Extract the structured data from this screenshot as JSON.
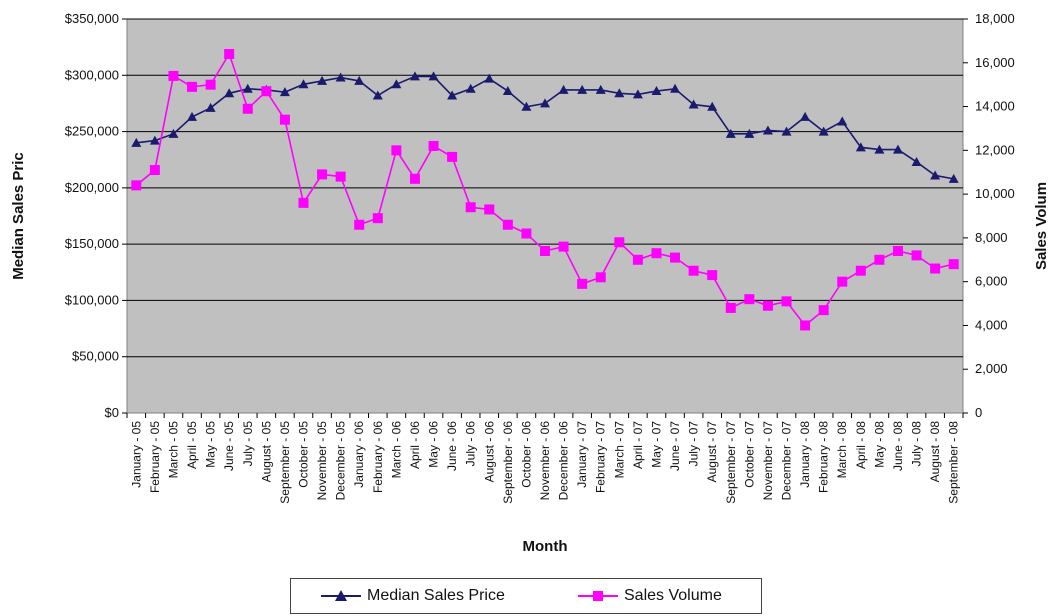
{
  "chart_data": {
    "type": "line",
    "title": "",
    "xlabel": "Month",
    "ylabel_left": "Median Sales Pric",
    "ylabel_right": "Sales Volum",
    "ylim_left": [
      0,
      350000
    ],
    "ylim_right": [
      0,
      18000
    ],
    "yticks_left": [
      "$0",
      "$50,000",
      "$100,000",
      "$150,000",
      "$200,000",
      "$250,000",
      "$300,000",
      "$350,000"
    ],
    "yticks_right": [
      "0",
      "2,000",
      "4,000",
      "6,000",
      "8,000",
      "10,000",
      "12,000",
      "14,000",
      "16,000",
      "18,000"
    ],
    "grid": true,
    "plot_background": "#c0c0c0",
    "legend_position": "bottom",
    "categories": [
      "January - 05",
      "February - 05",
      "March - 05",
      "April - 05",
      "May - 05",
      "June - 05",
      "July - 05",
      "August - 05",
      "September - 05",
      "October - 05",
      "November - 05",
      "December - 05",
      "January - 06",
      "February - 06",
      "March - 06",
      "April - 06",
      "May - 06",
      "June - 06",
      "July - 06",
      "August - 06",
      "September - 06",
      "October - 06",
      "November - 06",
      "December - 06",
      "January - 07",
      "February - 07",
      "March - 07",
      "April - 07",
      "May - 07",
      "June - 07",
      "July - 07",
      "August - 07",
      "September - 07",
      "October - 07",
      "November - 07",
      "December - 07",
      "January - 08",
      "February - 08",
      "March - 08",
      "April - 08",
      "May - 08",
      "June - 08",
      "July - 08",
      "August - 08",
      "September - 08"
    ],
    "series": [
      {
        "name": "Median Sales Price",
        "axis": "left",
        "color": "#1a1a6e",
        "marker": "triangle",
        "values": [
          240000,
          242000,
          248000,
          263000,
          271000,
          284000,
          288000,
          287000,
          285000,
          292000,
          295000,
          298000,
          295000,
          282000,
          292000,
          299000,
          299000,
          282000,
          288000,
          297000,
          286000,
          272000,
          275000,
          287000,
          287000,
          287000,
          284000,
          283000,
          286000,
          288000,
          274000,
          272000,
          248000,
          248000,
          251000,
          250000,
          263000,
          250000,
          259000,
          236000,
          234000,
          234000,
          223000,
          211000,
          208000
        ]
      },
      {
        "name": "Sales Volume",
        "axis": "right",
        "color": "#ff00ff",
        "marker": "square",
        "values": [
          10400,
          11100,
          15400,
          14900,
          15000,
          16400,
          13900,
          14700,
          13400,
          9600,
          10900,
          10800,
          8600,
          8900,
          12000,
          10700,
          12200,
          11700,
          9400,
          9300,
          8600,
          8200,
          7400,
          7600,
          5900,
          6200,
          7800,
          7000,
          7300,
          7100,
          6500,
          6300,
          4800,
          5200,
          4900,
          5100,
          4000,
          4700,
          6000,
          6500,
          7000,
          7400,
          7200,
          6600,
          6800
        ]
      }
    ]
  }
}
